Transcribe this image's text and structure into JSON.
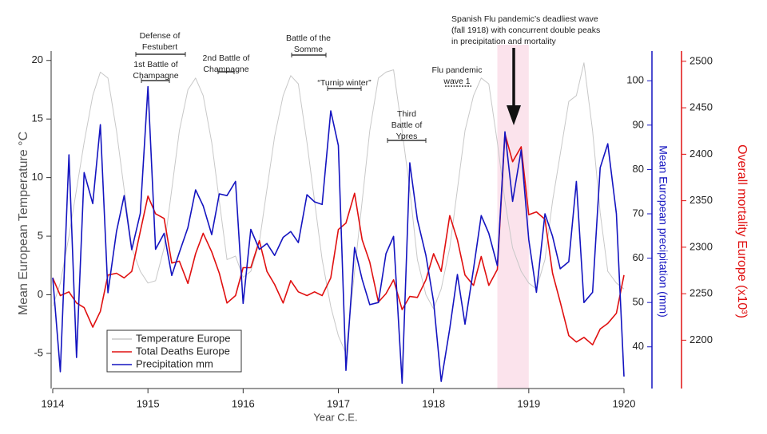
{
  "chart_data": {
    "type": "line",
    "x_label": "Year C.E.",
    "y_label": "Mean European Temperature °C",
    "y2_label": "Mean European precipitation (mm)",
    "y3_label": "Overall mortality Europe (x10³)",
    "x": [
      1914,
      1914.08,
      1914.17,
      1914.25,
      1914.33,
      1914.42,
      1914.5,
      1914.58,
      1914.67,
      1914.75,
      1914.83,
      1914.92,
      1915,
      1915.08,
      1915.17,
      1915.25,
      1915.33,
      1915.42,
      1915.5,
      1915.58,
      1915.67,
      1915.75,
      1915.83,
      1915.92,
      1916,
      1916.08,
      1916.17,
      1916.25,
      1916.33,
      1916.42,
      1916.5,
      1916.58,
      1916.67,
      1916.75,
      1916.83,
      1916.92,
      1917,
      1917.08,
      1917.17,
      1917.25,
      1917.33,
      1917.42,
      1917.5,
      1917.58,
      1917.67,
      1917.75,
      1917.83,
      1917.92,
      1918,
      1918.08,
      1918.17,
      1918.25,
      1918.33,
      1918.42,
      1918.5,
      1918.58,
      1918.67,
      1918.75,
      1918.83,
      1918.92,
      1919,
      1919.08,
      1919.17,
      1919.25,
      1919.33,
      1919.42,
      1919.5,
      1919.58,
      1919.67,
      1919.75,
      1919.83,
      1919.92,
      1920
    ],
    "xlim": [
      1914,
      1920
    ],
    "xticks": [
      1914,
      1915,
      1916,
      1917,
      1918,
      1919,
      1920
    ],
    "ylim": [
      -8,
      20.8
    ],
    "yticks": [
      -5,
      0,
      5,
      10,
      15,
      20
    ],
    "y2lim": [
      30.6,
      106.7
    ],
    "y2ticks": [
      40,
      50,
      60,
      70,
      80,
      90,
      100
    ],
    "y3lim": [
      2148,
      2511
    ],
    "y3ticks": [
      2200,
      2250,
      2300,
      2350,
      2400,
      2450,
      2500
    ],
    "series": [
      {
        "name": "Temperature Europe",
        "color": "#c8c8c8",
        "axis": "y",
        "values": [
          -1,
          1,
          5,
          9,
          13,
          17,
          19,
          18.5,
          14,
          9,
          4,
          2,
          1,
          1.2,
          4,
          9,
          14,
          17.5,
          18.5,
          17,
          13,
          8,
          3,
          3.3,
          1.5,
          2,
          4.5,
          9,
          13.5,
          17,
          18.7,
          18,
          13,
          8,
          3,
          -1,
          -3.5,
          -5,
          2,
          8,
          14,
          18.5,
          19,
          19.2,
          14,
          9,
          3,
          0,
          -1.2,
          0.5,
          4,
          9,
          14,
          17,
          18.5,
          18,
          13,
          8,
          4,
          2,
          1,
          0.5,
          3,
          8,
          12,
          16.5,
          17,
          19.8,
          14,
          7,
          2,
          1,
          0.5
        ]
      },
      {
        "name": "Total Deaths Europe",
        "color": "#e01010",
        "axis": "y3",
        "values": [
          2267,
          2248,
          2252,
          2240,
          2235,
          2214,
          2231,
          2270,
          2272,
          2267,
          2274,
          2317,
          2355,
          2336,
          2331,
          2283,
          2285,
          2261,
          2293,
          2315,
          2295,
          2272,
          2240,
          2248,
          2278,
          2278,
          2307,
          2274,
          2260,
          2240,
          2264,
          2252,
          2248,
          2252,
          2248,
          2267,
          2319,
          2326,
          2358,
          2308,
          2284,
          2241,
          2250,
          2265,
          2233,
          2247,
          2246,
          2265,
          2293,
          2274,
          2334,
          2308,
          2270,
          2259,
          2290,
          2259,
          2276,
          2422,
          2392,
          2408,
          2335,
          2338,
          2330,
          2272,
          2241,
          2205,
          2198,
          2203,
          2195,
          2212,
          2218,
          2229,
          2270
        ]
      },
      {
        "name": "Precipitation mm",
        "color": "#1414c0",
        "axis": "y2",
        "values": [
          55.6,
          34.4,
          83.3,
          37.6,
          79.3,
          72.3,
          90.1,
          52.2,
          66.0,
          74.1,
          61.9,
          70.1,
          98.7,
          62.0,
          65.6,
          56.1,
          61.3,
          66.9,
          75.4,
          71.8,
          65.3,
          74.5,
          74.1,
          77.3,
          49.8,
          66.5,
          62.0,
          63.3,
          60.6,
          64.7,
          66.0,
          63.5,
          74.3,
          72.7,
          72.1,
          93.2,
          85.4,
          34.7,
          62.4,
          55.2,
          49.5,
          50.0,
          61.0,
          64.9,
          31.8,
          81.5,
          68.7,
          60.6,
          50.2,
          32.2,
          44.1,
          56.3,
          45.1,
          57.6,
          69.6,
          65.6,
          58.3,
          88.5,
          72.8,
          84.4,
          64.2,
          52.3,
          70.0,
          64.9,
          57.6,
          59.2,
          77.3,
          50.0,
          52.3,
          80.4,
          85.8,
          70.0,
          33.3
        ]
      }
    ],
    "highlight_span": [
      1918.67,
      1919
    ],
    "annotations": [
      {
        "lines": [
          "Defense of",
          "Festubert"
        ]
      },
      {
        "lines": [
          "1st Battle of",
          "Champagne"
        ]
      },
      {
        "lines": [
          "2nd Battle of",
          "Champagne"
        ]
      },
      {
        "lines": [
          "Battle of the",
          "Somme"
        ]
      },
      {
        "lines": [
          "“Turnip winter”"
        ]
      },
      {
        "lines": [
          "Third",
          "Battle of",
          "Ypres"
        ]
      },
      {
        "lines": [
          "Flu pandemic",
          "wave 1"
        ]
      },
      {
        "lines": [
          "Spanish Flu pandemic’s deadliest wave",
          "(fall 1918) with concurrent double peaks",
          "in precipitation and mortality"
        ]
      }
    ]
  }
}
